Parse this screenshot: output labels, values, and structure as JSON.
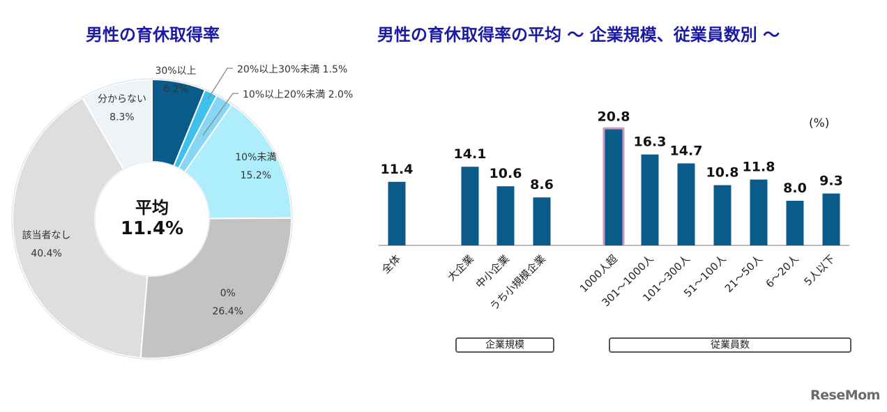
{
  "chart_data": [
    {
      "type": "pie",
      "title": "男性の育休取得率",
      "center_label": {
        "line1": "平均",
        "line2": "11.4%"
      },
      "slices": [
        {
          "label": "30%以上",
          "value": 6.2,
          "display": "6.2%",
          "color": "#0a5a8a"
        },
        {
          "label": "20%以上30%未満",
          "value": 1.5,
          "display": "1.5%",
          "color": "#3ec0ec"
        },
        {
          "label": "10%以上20%未満",
          "value": 2.0,
          "display": "2.0%",
          "color": "#86d6f4"
        },
        {
          "label": "10%未満",
          "value": 15.2,
          "display": "15.2%",
          "color": "#aeedfb"
        },
        {
          "label": "0%",
          "value": 26.4,
          "display": "26.4%",
          "color": "#c3c3c3"
        },
        {
          "label": "該当者なし",
          "value": 40.4,
          "display": "40.4%",
          "color": "#dedede"
        },
        {
          "label": "分からない",
          "value": 8.3,
          "display": "8.3%",
          "color": "#eef3f8"
        }
      ],
      "callouts": [
        {
          "text": "20%以上30%未満 1.5%"
        },
        {
          "text": "10%以上20%未満 2.0%"
        }
      ]
    },
    {
      "type": "bar",
      "title": "男性の育休取得率の平均 ～ 企業規模、従業員数別 ～",
      "unit_label": "(%)",
      "ylim": [
        0,
        22
      ],
      "bar_color": "#0a5a8a",
      "highlight_color": "#cc99bb",
      "categories": [
        "全体",
        "大企業",
        "中小企業",
        "うち小規模企業",
        "1000人超",
        "301～1000人",
        "101～300人",
        "51～100人",
        "21～50人",
        "6～20人",
        "5人以下"
      ],
      "values": [
        11.4,
        14.1,
        10.6,
        8.6,
        20.8,
        16.3,
        14.7,
        10.8,
        11.8,
        8.0,
        9.3
      ],
      "value_labels": [
        "11.4",
        "14.1",
        "10.6",
        "8.6",
        "20.8",
        "16.3",
        "14.7",
        "10.8",
        "11.8",
        "8.0",
        "9.3"
      ],
      "highlighted": [
        "1000人超"
      ],
      "groups": [
        {
          "label": "企業規模",
          "members": [
            "大企業",
            "中小企業",
            "うち小規模企業"
          ]
        },
        {
          "label": "従業員数",
          "members": [
            "1000人超",
            "301～1000人",
            "101～300人",
            "51～100人",
            "21～50人",
            "6～20人",
            "5人以下"
          ]
        }
      ]
    }
  ],
  "watermark": "ReseMom"
}
